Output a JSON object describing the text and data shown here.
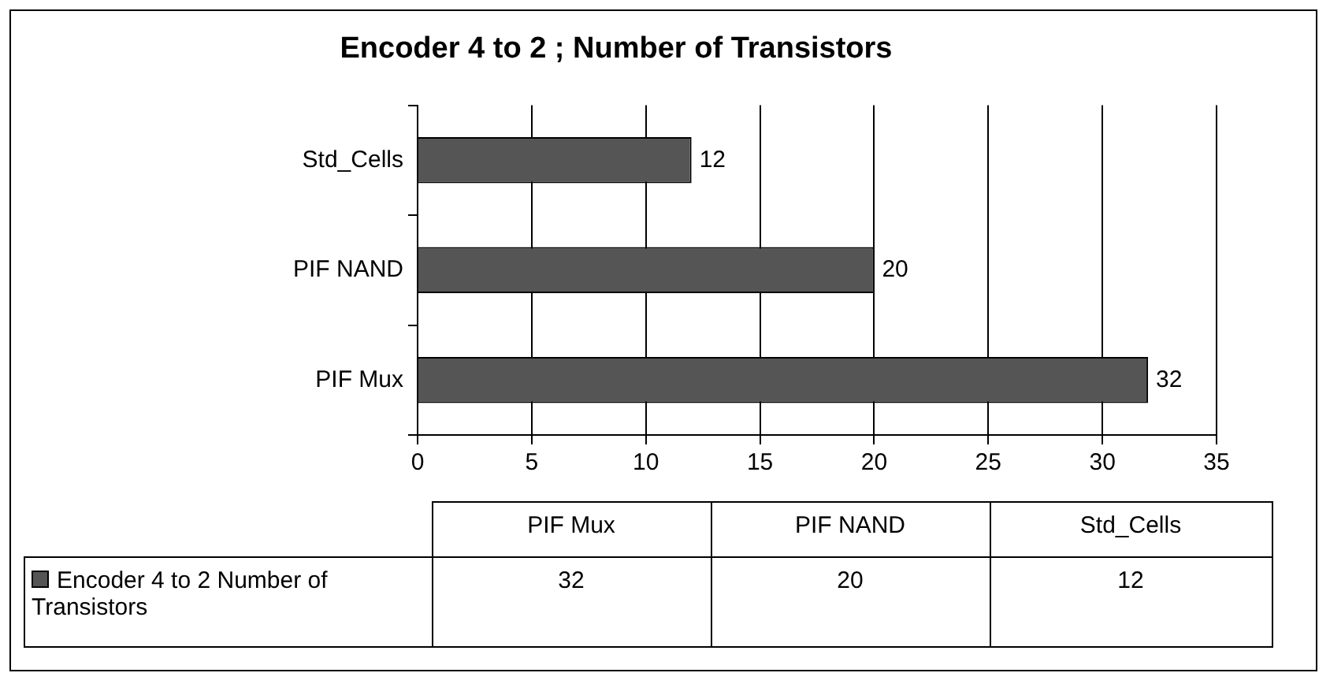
{
  "chart_data": {
    "type": "bar",
    "orientation": "horizontal",
    "title": "Encoder 4 to 2 ; Number of Transistors",
    "categories": [
      "Std_Cells",
      "PIF NAND",
      "PIF Mux"
    ],
    "series": [
      {
        "name": "Encoder 4 to 2 Number of Transistors",
        "color": "#555555",
        "values": [
          12,
          20,
          32
        ],
        "value_labels": [
          "12",
          "20",
          "32"
        ]
      }
    ],
    "xlim": [
      0,
      35
    ],
    "xticks": [
      0,
      5,
      10,
      15,
      20,
      25,
      30,
      35
    ],
    "grid": "x",
    "legend": "bottom"
  }
}
